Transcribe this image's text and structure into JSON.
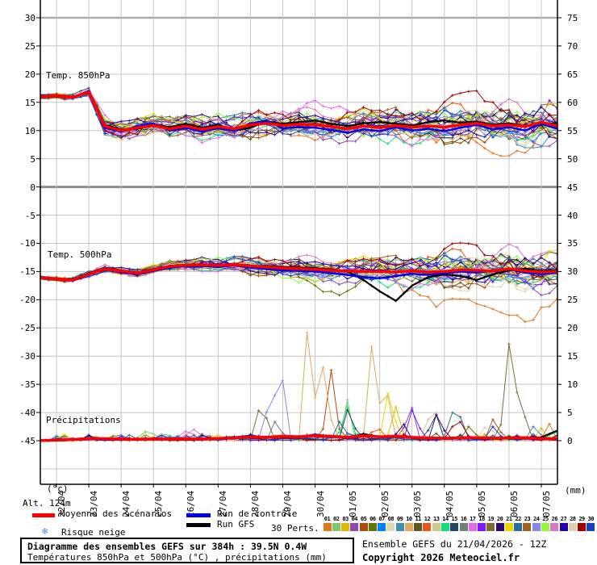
{
  "panels": {
    "temp850_label": "Temp. 850hPa",
    "temp500_label": "Temp. 500hPa",
    "precip_label": "Précipitations"
  },
  "axes": {
    "left_unit": "(°c)",
    "right_unit": "(mm)",
    "altitude": "Alt. 124m",
    "left_labels": [
      "30",
      "25",
      "20",
      "15",
      "10",
      "5",
      "0",
      "-5",
      "-10",
      "-15",
      "-20",
      "-25",
      "-30",
      "-35",
      "-40",
      "-45"
    ],
    "right_labels": [
      "75",
      "70",
      "65",
      "60",
      "55",
      "50",
      "45",
      "40",
      "35",
      "30",
      "25",
      "20",
      "15",
      "10",
      "5",
      "0"
    ],
    "dates": [
      "22/04",
      "23/04",
      "24/04",
      "25/04",
      "26/04",
      "27/04",
      "28/04",
      "29/04",
      "30/04",
      "01/05",
      "02/05",
      "03/05",
      "04/05",
      "05/05",
      "06/05",
      "07/05"
    ]
  },
  "legend": {
    "mean_label": "Moyenne des scénarios",
    "mean_color": "#ff0000",
    "control_label": "Run de contrôle",
    "control_color": "#0000ee",
    "gfs_label": "Run GFS",
    "gfs_color": "#000000",
    "perts_label": "30 Perts.",
    "snow_label": "Risque neige",
    "snow_icon_color": "#4890d8",
    "pert_numbers": [
      "01",
      "02",
      "03",
      "04",
      "05",
      "06",
      "07",
      "08",
      "09",
      "10",
      "11",
      "12",
      "13",
      "14",
      "15",
      "16",
      "17",
      "18",
      "19",
      "20",
      "21",
      "22",
      "23",
      "24",
      "25",
      "26",
      "27",
      "28",
      "29",
      "30"
    ]
  },
  "footer": {
    "box_title": "Diagramme des ensembles GEFS sur 384h : 39.5N 0.4W",
    "box_subtitle": "Températures 850hPa et 500hPa (°C) , précipitations (mm)",
    "run_info": "Ensemble GEFS du 21/04/2026 - 12Z",
    "copyright": "Copyright 2026 Meteociel.fr"
  },
  "chart_data": {
    "type": "line",
    "subtype": "ensemble-spaghetti",
    "title": "Diagramme des ensembles GEFS sur 384h : 39.5N 0.4W",
    "x_axis": {
      "start": "21/04 12Z",
      "hours_total": 384,
      "step_hours_stored": 12,
      "tick_dates": [
        "22/04",
        "23/04",
        "24/04",
        "25/04",
        "26/04",
        "27/04",
        "28/04",
        "29/04",
        "30/04",
        "01/05",
        "02/05",
        "03/05",
        "04/05",
        "05/05",
        "06/05",
        "07/05"
      ]
    },
    "left_axis": {
      "label": "(°c)",
      "min": -52.5,
      "max": 33,
      "ticks": [
        30,
        25,
        20,
        15,
        10,
        5,
        0,
        -5,
        -10,
        -15,
        -20,
        -25,
        -30,
        -35,
        -40,
        -45
      ]
    },
    "right_axis": {
      "label": "(mm)",
      "min": 0,
      "max": 80,
      "ticks": [
        75,
        70,
        65,
        60,
        55,
        50,
        45,
        40,
        35,
        30,
        25,
        20,
        15,
        10,
        5,
        0
      ]
    },
    "grid": true,
    "n_members": 30,
    "member_colors": [
      "#e07820",
      "#80c870",
      "#e0b800",
      "#9048b0",
      "#b04810",
      "#607800",
      "#0080f8",
      "#e0d8b0",
      "#4090b0",
      "#e0a860",
      "#605820",
      "#e85818",
      "#d0c890",
      "#10e070",
      "#204860",
      "#708078",
      "#e868e8",
      "#8018f8",
      "#806830",
      "#300870",
      "#e8d800",
      "#2870a0",
      "#a06020",
      "#8888e8",
      "#90f838",
      "#d878c8",
      "#2800a8",
      "#e0d0a8",
      "#a00000",
      "#1840c8"
    ],
    "temp850": {
      "mean": [
        16.0,
        16.2,
        15.9,
        16.8,
        10.8,
        10.0,
        10.5,
        10.9,
        10.3,
        10.8,
        10.2,
        10.7,
        10.3,
        11.0,
        11.3,
        10.9,
        11.1,
        11.0,
        10.7,
        10.3,
        10.8,
        10.5,
        10.9,
        10.6,
        10.8,
        10.6,
        11.0,
        11.3,
        10.8,
        11.0,
        10.7,
        11.5,
        10.8
      ],
      "control": [
        16.1,
        16.3,
        15.8,
        17.0,
        10.5,
        9.8,
        10.8,
        11.2,
        10.0,
        10.5,
        9.8,
        10.4,
        9.9,
        11.2,
        11.8,
        10.4,
        10.6,
        10.5,
        10.1,
        9.6,
        10.2,
        9.9,
        10.6,
        10.0,
        10.3,
        9.9,
        10.5,
        11.0,
        10.2,
        10.6,
        10.0,
        11.2,
        10.3
      ],
      "gfs": [
        16.0,
        16.1,
        16.0,
        16.6,
        11.0,
        10.2,
        10.3,
        11.0,
        10.6,
        11.2,
        10.5,
        11.0,
        10.0,
        10.5,
        11.6,
        11.2,
        11.5,
        11.8,
        11.2,
        10.8,
        11.3,
        11.5,
        11.2,
        10.9,
        11.5,
        11.8,
        11.4,
        11.6,
        11.0,
        11.3,
        10.8,
        11.0,
        11.4
      ],
      "spread": [
        0.35,
        0.35,
        0.4,
        0.5,
        1.1,
        1.2,
        1.25,
        1.3,
        1.3,
        1.35,
        1.4,
        1.4,
        1.45,
        1.5,
        1.5,
        1.55,
        1.6,
        1.6,
        1.65,
        1.7,
        1.75,
        1.8,
        1.85,
        1.9,
        1.95,
        2.0,
        2.1,
        2.15,
        2.2,
        2.3,
        2.35,
        2.4,
        2.45
      ]
    },
    "temp500": {
      "mean": [
        -16.1,
        -16.3,
        -16.5,
        -15.5,
        -14.5,
        -14.9,
        -15.3,
        -14.7,
        -14.1,
        -13.9,
        -13.8,
        -13.9,
        -13.8,
        -14.0,
        -14.2,
        -14.4,
        -14.5,
        -14.6,
        -14.8,
        -14.9,
        -15.0,
        -15.0,
        -15.1,
        -14.9,
        -15.1,
        -15.0,
        -14.7,
        -14.8,
        -14.9,
        -14.5,
        -14.9,
        -15.1,
        -15.0
      ],
      "control": [
        -16.1,
        -16.2,
        -16.6,
        -15.6,
        -14.3,
        -15.1,
        -15.5,
        -14.9,
        -14.3,
        -14.1,
        -14.0,
        -14.2,
        -13.9,
        -14.3,
        -14.6,
        -14.8,
        -14.9,
        -15.0,
        -15.3,
        -15.6,
        -16.0,
        -16.2,
        -15.8,
        -15.4,
        -15.6,
        -15.3,
        -15.0,
        -15.2,
        -14.8,
        -14.6,
        -15.2,
        -15.5,
        -15.2
      ],
      "gfs": [
        -16.1,
        -16.3,
        -16.4,
        -15.3,
        -14.4,
        -14.8,
        -15.2,
        -14.6,
        -14.0,
        -13.8,
        -13.7,
        -13.9,
        -13.7,
        -14.1,
        -14.0,
        -14.2,
        -14.3,
        -14.4,
        -14.6,
        -15.0,
        -16.5,
        -18.5,
        -20.2,
        -17.5,
        -16.0,
        -15.5,
        -15.8,
        -16.5,
        -15.5,
        -14.8,
        -14.5,
        -14.9,
        -14.7
      ],
      "spread": [
        0.25,
        0.3,
        0.3,
        0.35,
        0.4,
        0.45,
        0.5,
        0.55,
        0.6,
        0.65,
        0.7,
        0.8,
        0.9,
        1.0,
        1.05,
        1.15,
        1.25,
        1.3,
        1.4,
        1.5,
        1.55,
        1.65,
        1.7,
        1.8,
        1.85,
        1.9,
        2.0,
        2.05,
        2.1,
        2.2,
        2.25,
        2.3,
        2.4
      ]
    },
    "precip": {
      "mean": [
        0.05,
        0.1,
        0.2,
        0.4,
        0.35,
        0.3,
        0.25,
        0.3,
        0.3,
        0.35,
        0.3,
        0.4,
        0.5,
        0.7,
        0.6,
        0.8,
        0.7,
        0.9,
        0.8,
        0.6,
        0.9,
        0.7,
        0.8,
        0.6,
        0.5,
        0.45,
        0.5,
        0.55,
        0.45,
        0.5,
        0.55,
        0.4,
        0.35
      ],
      "control": [
        0.0,
        0.05,
        0.15,
        0.3,
        0.25,
        0.2,
        0.2,
        0.25,
        0.2,
        0.3,
        0.25,
        0.3,
        0.6,
        0.9,
        0.5,
        0.7,
        0.6,
        1.1,
        0.7,
        0.5,
        0.8,
        0.6,
        0.7,
        0.5,
        0.4,
        0.35,
        0.4,
        0.45,
        0.35,
        0.4,
        0.45,
        0.3,
        0.3
      ],
      "gfs": [
        0.0,
        0.05,
        0.1,
        0.35,
        0.3,
        0.25,
        0.2,
        0.25,
        0.25,
        0.3,
        0.25,
        0.35,
        0.45,
        0.6,
        0.5,
        0.7,
        0.6,
        0.8,
        0.7,
        0.5,
        1.2,
        0.6,
        0.7,
        0.5,
        0.45,
        0.4,
        0.45,
        0.5,
        0.4,
        0.45,
        0.5,
        0.6,
        1.8
      ],
      "member_spikes": [
        {
          "m": 11,
          "d": 1.6,
          "mm": 1.2,
          "w": 0.3
        },
        {
          "m": 2,
          "d": 3.35,
          "mm": 2.4,
          "w": 0.3
        },
        {
          "m": 7,
          "d": 3.3,
          "mm": 1.2,
          "w": 0.3
        },
        {
          "m": 17,
          "d": 4.55,
          "mm": 2.0,
          "w": 0.3
        },
        {
          "m": 26,
          "d": 4.8,
          "mm": 2.4,
          "w": 0.3
        },
        {
          "m": 7,
          "d": 5.15,
          "mm": 1.4,
          "w": 0.3
        },
        {
          "m": 13,
          "d": 5.9,
          "mm": 1.2,
          "w": 0.3
        },
        {
          "m": 19,
          "d": 6.85,
          "mm": 8.0,
          "w": 0.3
        },
        {
          "m": 24,
          "d": 7.1,
          "mm": 8.5,
          "w": 0.25
        },
        {
          "m": 24,
          "d": 7.4,
          "mm": 16.0,
          "w": 0.3
        },
        {
          "m": 16,
          "d": 7.3,
          "mm": 4.0,
          "w": 0.3
        },
        {
          "m": 10,
          "d": 8.3,
          "mm": 23.0,
          "w": 0.3
        },
        {
          "m": 10,
          "d": 8.75,
          "mm": 13.0,
          "w": 0.35
        },
        {
          "m": 5,
          "d": 9.0,
          "mm": 12.5,
          "w": 0.3
        },
        {
          "m": 14,
          "d": 9.45,
          "mm": 7.5,
          "w": 0.25
        },
        {
          "m": 15,
          "d": 9.55,
          "mm": 6.5,
          "w": 0.3
        },
        {
          "m": 2,
          "d": 9.5,
          "mm": 7.2,
          "w": 0.25
        },
        {
          "m": 22,
          "d": 9.3,
          "mm": 4.0,
          "w": 0.3
        },
        {
          "m": 10,
          "d": 10.3,
          "mm": 20.0,
          "w": 0.3
        },
        {
          "m": 10,
          "d": 10.65,
          "mm": 12.0,
          "w": 0.3
        },
        {
          "m": 21,
          "d": 10.8,
          "mm": 10.0,
          "w": 0.3
        },
        {
          "m": 3,
          "d": 11.0,
          "mm": 6.0,
          "w": 0.3
        },
        {
          "m": 12,
          "d": 10.4,
          "mm": 3.0,
          "w": 0.3
        },
        {
          "m": 4,
          "d": 11.45,
          "mm": 7.0,
          "w": 0.3
        },
        {
          "m": 18,
          "d": 11.55,
          "mm": 6.5,
          "w": 0.3
        },
        {
          "m": 27,
          "d": 11.2,
          "mm": 3.5,
          "w": 0.3
        },
        {
          "m": 13,
          "d": 12.15,
          "mm": 7.5,
          "w": 0.3
        },
        {
          "m": 20,
          "d": 12.3,
          "mm": 5.5,
          "w": 0.3
        },
        {
          "m": 15,
          "d": 12.2,
          "mm": 5.5,
          "w": 0.3
        },
        {
          "m": 22,
          "d": 12.75,
          "mm": 5.0,
          "w": 0.3
        },
        {
          "m": 29,
          "d": 12.9,
          "mm": 5.0,
          "w": 0.3
        },
        {
          "m": 6,
          "d": 13.3,
          "mm": 3.0,
          "w": 0.3
        },
        {
          "m": 22,
          "d": 13.0,
          "mm": 4.2,
          "w": 0.25
        },
        {
          "m": 28,
          "d": 13.85,
          "mm": 3.5,
          "w": 0.3
        },
        {
          "m": 23,
          "d": 14.05,
          "mm": 4.5,
          "w": 0.3
        },
        {
          "m": 19,
          "d": 14.55,
          "mm": 20.0,
          "w": 0.35
        },
        {
          "m": 19,
          "d": 14.95,
          "mm": 5.0,
          "w": 0.3
        },
        {
          "m": 30,
          "d": 14.0,
          "mm": 2.5,
          "w": 0.3
        },
        {
          "m": 9,
          "d": 15.3,
          "mm": 3.0,
          "w": 0.3
        },
        {
          "m": 1,
          "d": 15.75,
          "mm": 3.0,
          "w": 0.25
        },
        {
          "m": 14,
          "d": 15.9,
          "mm": 2.5,
          "w": 0.25
        },
        {
          "m": 3,
          "d": 15.5,
          "mm": 2.2,
          "w": 0.25
        }
      ]
    },
    "member_excursions": [
      {
        "p": "t850",
        "m": 29,
        "d": 10.5,
        "delta": 3.2,
        "w": 3.0
      },
      {
        "p": "t850",
        "m": 29,
        "d": 14.2,
        "delta": 3.0,
        "w": 2.0
      },
      {
        "p": "t850",
        "m": 18,
        "d": 15.85,
        "delta": 4.5,
        "w": 0.6
      },
      {
        "p": "t850",
        "m": 1,
        "d": 13.2,
        "delta": -3.5,
        "w": 2.0
      },
      {
        "p": "t850",
        "m": 9,
        "d": 15.6,
        "delta": -3.5,
        "w": 1.2
      },
      {
        "p": "t850",
        "m": 17,
        "d": 8.3,
        "delta": 3.0,
        "w": 1.2
      },
      {
        "p": "t850",
        "m": 17,
        "d": 9.0,
        "delta": 2.5,
        "w": 1.0
      },
      {
        "p": "t500",
        "m": 1,
        "d": 12.8,
        "delta": -7.0,
        "w": 1.6
      },
      {
        "p": "t500",
        "m": 1,
        "d": 15.3,
        "delta": -5.5,
        "w": 1.2
      },
      {
        "p": "t500",
        "m": 25,
        "d": 8.2,
        "delta": -3.2,
        "w": 1.0
      },
      {
        "p": "t500",
        "m": 6,
        "d": 9.35,
        "delta": -3.8,
        "w": 1.0
      },
      {
        "p": "t500",
        "m": 29,
        "d": 12.0,
        "delta": 2.8,
        "w": 4.0
      },
      {
        "p": "t500",
        "m": 17,
        "d": 15.6,
        "delta": 3.0,
        "w": 1.2
      },
      {
        "p": "t500",
        "m": 8,
        "d": 13.5,
        "delta": -3.0,
        "w": 1.5
      }
    ]
  }
}
